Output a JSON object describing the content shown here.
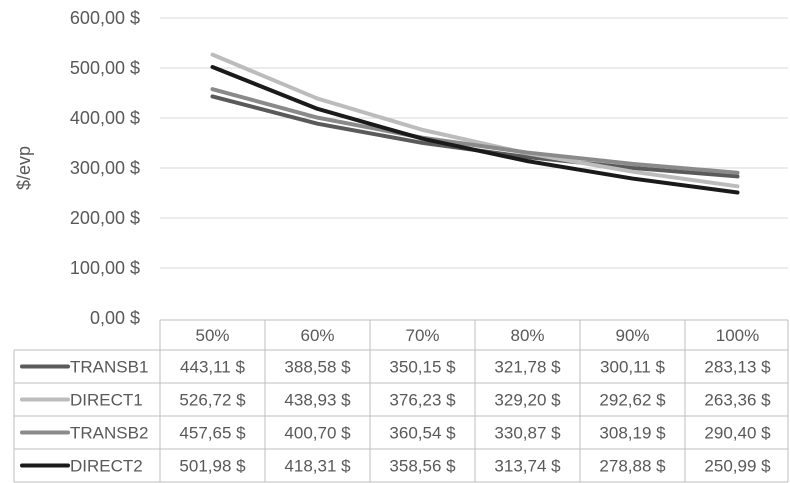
{
  "chart_data": {
    "type": "line",
    "ylabel": "$/evp",
    "ylim": [
      0,
      600
    ],
    "y_ticks": [
      "0,00 $",
      "100,00 $",
      "200,00 $",
      "300,00 $",
      "400,00 $",
      "500,00 $",
      "600,00 $"
    ],
    "y_tick_values": [
      0,
      100,
      200,
      300,
      400,
      500,
      600
    ],
    "categories": [
      "50%",
      "60%",
      "70%",
      "80%",
      "90%",
      "100%"
    ],
    "grid": true,
    "legend": "data-table",
    "series": [
      {
        "name": "TRANSB1",
        "color": "#5a5a5a",
        "values": [
          443.11,
          388.58,
          350.15,
          321.78,
          300.11,
          283.13
        ],
        "labels": [
          "443,11 $",
          "388,58 $",
          "350,15 $",
          "321,78 $",
          "300,11 $",
          "283,13 $"
        ]
      },
      {
        "name": "DIRECT1",
        "color": "#bcbcbc",
        "values": [
          526.72,
          438.93,
          376.23,
          329.2,
          292.62,
          263.36
        ],
        "labels": [
          "526,72 $",
          "438,93 $",
          "376,23 $",
          "329,20 $",
          "292,62 $",
          "263,36 $"
        ]
      },
      {
        "name": "TRANSB2",
        "color": "#8a8a8a",
        "values": [
          457.65,
          400.7,
          360.54,
          330.87,
          308.19,
          290.4
        ],
        "labels": [
          "457,65 $",
          "400,70 $",
          "360,54 $",
          "330,87 $",
          "308,19 $",
          "290,40 $"
        ]
      },
      {
        "name": "DIRECT2",
        "color": "#1a1a1a",
        "values": [
          501.98,
          418.31,
          358.56,
          313.74,
          278.88,
          250.99
        ],
        "labels": [
          "501,98 $",
          "418,31 $",
          "358,56 $",
          "313,74 $",
          "278,88 $",
          "250,99 $"
        ]
      }
    ]
  }
}
